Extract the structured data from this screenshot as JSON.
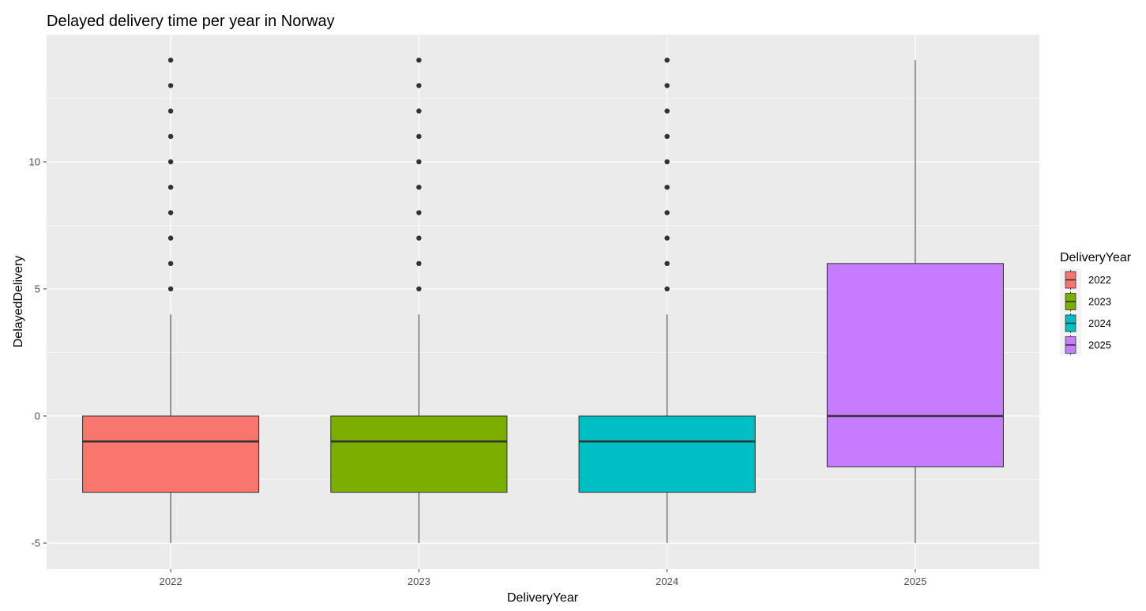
{
  "chart_data": {
    "type": "boxplot",
    "title": "Delayed delivery time per year in Norway",
    "xlabel": "DeliveryYear",
    "ylabel": "DelayedDelivery",
    "ylim": [
      -6,
      14.5
    ],
    "yticks": [
      -5,
      0,
      5,
      10
    ],
    "y_tick_labels": [
      "-5",
      "0",
      "5",
      "10"
    ],
    "grid": true,
    "legend": {
      "title": "DeliveryYear",
      "position": "right"
    },
    "categories": [
      "2022",
      "2023",
      "2024",
      "2025"
    ],
    "boxes": [
      {
        "category": "2022",
        "color": "#F8766D",
        "whisker_low": -5,
        "q1": -3,
        "median": -1,
        "q3": 0,
        "whisker_high": 4,
        "outliers": [
          5,
          6,
          7,
          8,
          9,
          10,
          11,
          12,
          13,
          14
        ]
      },
      {
        "category": "2023",
        "color": "#7CAE00",
        "whisker_low": -5,
        "q1": -3,
        "median": -1,
        "q3": 0,
        "whisker_high": 4,
        "outliers": [
          5,
          6,
          7,
          8,
          9,
          10,
          11,
          12,
          13,
          14
        ]
      },
      {
        "category": "2024",
        "color": "#00BFC4",
        "whisker_low": -5,
        "q1": -3,
        "median": -1,
        "q3": 0,
        "whisker_high": 4,
        "outliers": [
          5,
          6,
          7,
          8,
          9,
          10,
          11,
          12,
          13,
          14
        ]
      },
      {
        "category": "2025",
        "color": "#C77CFF",
        "whisker_low": -5,
        "q1": -2,
        "median": 0,
        "q3": 6,
        "whisker_high": 14,
        "outliers": []
      }
    ]
  }
}
